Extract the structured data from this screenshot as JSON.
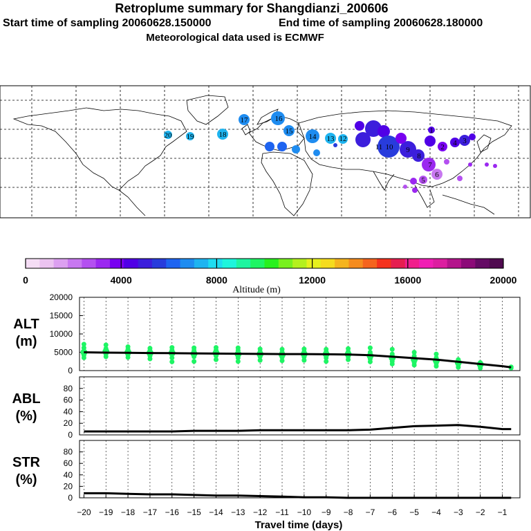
{
  "header": {
    "title": "Retroplume summary for Shangdianzi_200606",
    "start_label": "Start time of sampling 20060628.150000",
    "end_label": "End time of sampling 20060628.180000",
    "met_label": "Meteorological data used is ECMWF"
  },
  "map": {
    "cluster_labels": [
      "20",
      "19",
      "18",
      "17",
      "16",
      "15",
      "14",
      "13",
      "12",
      "11",
      "10",
      "9",
      "8",
      "7",
      "6",
      "5",
      "4",
      "3",
      "2",
      "1"
    ]
  },
  "colorbar": {
    "colors": [
      "#f5ddf5",
      "#ebc3f0",
      "#dca0f0",
      "#c878f0",
      "#b450f0",
      "#9b28f0",
      "#7800f0",
      "#5000e6",
      "#3c1edc",
      "#283cdc",
      "#1e64f0",
      "#1e8cf0",
      "#1eb4f0",
      "#1edcf0",
      "#1ef5dc",
      "#1ef5a0",
      "#1ef564",
      "#28f01e",
      "#78f01e",
      "#b4f01e",
      "#e6f01e",
      "#f5dc1e",
      "#f5b41e",
      "#f58c1e",
      "#f5641e",
      "#f5321e",
      "#e61e50",
      "#f01e8c",
      "#f01eb4",
      "#dc1ea0",
      "#b4148c",
      "#8c0a78",
      "#640a64",
      "#500a50"
    ],
    "tick_labels": [
      "0",
      "4000",
      "8000",
      "12000",
      "16000",
      "20000"
    ],
    "title": "Altitude (m)"
  },
  "panels": {
    "alt": {
      "label_line1": "ALT",
      "label_line2": "(m)",
      "y_ticks": [
        "0",
        "5000",
        "10000",
        "15000",
        "20000"
      ]
    },
    "abl": {
      "label_line1": "ABL",
      "label_line2": "(%)",
      "y_ticks": [
        "0",
        "20",
        "40",
        "60",
        "80"
      ]
    },
    "str": {
      "label_line1": "STR",
      "label_line2": "(%)",
      "y_ticks": [
        "0",
        "20",
        "40",
        "60",
        "80"
      ]
    }
  },
  "xaxis": {
    "tick_labels": [
      "-20",
      "-19",
      "-18",
      "-17",
      "-16",
      "-15",
      "-14",
      "-13",
      "-12",
      "-11",
      "-10",
      "-9",
      "-8",
      "-7",
      "-6",
      "-5",
      "-4",
      "-3",
      "-2",
      "-1"
    ],
    "label": "Travel time (days)"
  },
  "chart_data": {
    "type": "line",
    "x": [
      -20,
      -19,
      -18,
      -17,
      -16,
      -15,
      -14,
      -13,
      -12,
      -11,
      -10,
      -9,
      -8,
      -7,
      -6,
      -5,
      -4,
      -3,
      -2,
      -1,
      -0.6
    ],
    "series": [
      {
        "name": "ALT mean (m)",
        "values": [
          5000,
          4900,
          4850,
          4800,
          4750,
          4700,
          4650,
          4600,
          4550,
          4500,
          4500,
          4450,
          4400,
          4200,
          3800,
          3400,
          3000,
          2400,
          1800,
          1200,
          900
        ]
      },
      {
        "name": "ABL (%)",
        "values": [
          6,
          6,
          6,
          6,
          6,
          7,
          7,
          7,
          8,
          8,
          8,
          8,
          8,
          9,
          12,
          15,
          16,
          17,
          14,
          10,
          10
        ]
      },
      {
        "name": "STR (%)",
        "values": [
          8,
          8,
          7,
          6,
          6,
          5,
          4,
          4,
          3,
          2,
          1,
          1,
          0,
          0,
          0,
          0,
          0,
          0,
          0,
          0,
          0
        ]
      }
    ],
    "alt_spread": [
      {
        "x": -20,
        "values": [
          3500,
          4200,
          5000,
          6200,
          7200
        ]
      },
      {
        "x": -19,
        "values": [
          3800,
          4500,
          5200,
          6000,
          7000
        ]
      },
      {
        "x": -18,
        "values": [
          3600,
          4300,
          5000,
          5800,
          6500
        ]
      },
      {
        "x": -17,
        "values": [
          3200,
          4000,
          4800,
          5500,
          6100
        ]
      },
      {
        "x": -16,
        "values": [
          2400,
          3500,
          4800,
          5600,
          6300
        ]
      },
      {
        "x": -15,
        "values": [
          2500,
          3800,
          4600,
          5500,
          6200
        ]
      },
      {
        "x": -14,
        "values": [
          3000,
          4000,
          4800,
          5600,
          6300
        ]
      },
      {
        "x": -13,
        "values": [
          2500,
          3500,
          4500,
          5500,
          6200
        ]
      },
      {
        "x": -12,
        "values": [
          2800,
          3800,
          4500,
          5200,
          5900
        ]
      },
      {
        "x": -11,
        "values": [
          2700,
          3600,
          4300,
          5000,
          5800
        ]
      },
      {
        "x": -10,
        "values": [
          2800,
          3700,
          4500,
          5200,
          5900
        ]
      },
      {
        "x": -9,
        "values": [
          2500,
          3500,
          4500,
          5200,
          5800
        ]
      },
      {
        "x": -8,
        "values": [
          3000,
          3800,
          4500,
          5200,
          6000
        ]
      },
      {
        "x": -7,
        "values": [
          2400,
          3200,
          4000,
          5000,
          6200
        ]
      },
      {
        "x": -6,
        "values": [
          1800,
          2500,
          3500,
          4500,
          5800
        ]
      },
      {
        "x": -5,
        "values": [
          1500,
          2200,
          3000,
          4000,
          5000
        ]
      },
      {
        "x": -4,
        "values": [
          1200,
          1900,
          2700,
          3500,
          4500
        ]
      },
      {
        "x": -3,
        "values": [
          900,
          1500,
          2200,
          3000
        ]
      },
      {
        "x": -2,
        "values": [
          700,
          1200,
          1700,
          2200
        ]
      },
      {
        "x": -0.6,
        "values": [
          700,
          1000
        ]
      }
    ],
    "ylim_alt": [
      0,
      20000
    ],
    "ylim_pct": [
      0,
      100
    ],
    "xlim": [
      -20.2,
      -0.2
    ]
  }
}
